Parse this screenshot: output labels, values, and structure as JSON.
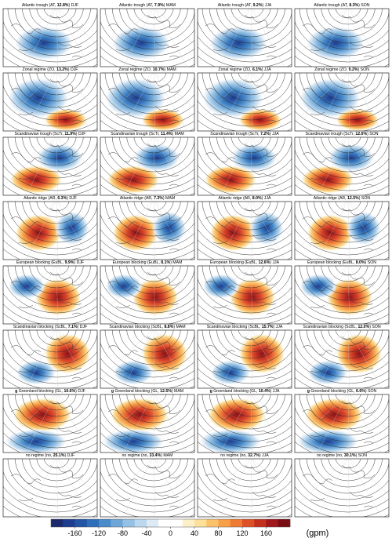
{
  "figure": {
    "rows": [
      {
        "panels": [
          {
            "pre": "Atlantic trough (AT, ",
            "bold": "12.8%",
            "post": ") DJF"
          },
          {
            "pre": "Atlantic trough (AT, ",
            "bold": "7.9%",
            "post": ") MAM"
          },
          {
            "pre": "Atlantic trough (AT, ",
            "bold": "9.2%",
            "post": ") JJA"
          },
          {
            "pre": "Atlantic trough (AT, ",
            "bold": "8.3%",
            "post": ") SON"
          }
        ]
      },
      {
        "panels": [
          {
            "pre": "Zonal regime (ZO, ",
            "bold": "13.2%",
            "post": ") DJF"
          },
          {
            "pre": "Zonal regime (ZO, ",
            "bold": "10.7%",
            "post": ") MAM"
          },
          {
            "pre": "Zonal regime (ZO, ",
            "bold": "6.1%",
            "post": ") JJA"
          },
          {
            "pre": "Zonal regime (ZO, ",
            "bold": "9.2%",
            "post": ") SON"
          }
        ]
      },
      {
        "panels": [
          {
            "pre": "Scandinavian trough (ScTr, ",
            "bold": "11.9%",
            "post": ") DJF"
          },
          {
            "pre": "Scandinavian trough (ScTr, ",
            "bold": "11.4%",
            "post": ") MAM"
          },
          {
            "pre": "Scandinavian trough (ScTr, ",
            "bold": "7.2%",
            "post": ") JJA"
          },
          {
            "pre": "Scandinavian trough (ScTr, ",
            "bold": "12.0%",
            "post": ") SON"
          }
        ]
      },
      {
        "panels": [
          {
            "pre": "Atlantic ridge (AR, ",
            "bold": "6.3%",
            "post": ") DJF"
          },
          {
            "pre": "Atlantic ridge (AR, ",
            "bold": "7.3%",
            "post": ") MAM"
          },
          {
            "pre": "Atlantic ridge (AR, ",
            "bold": "8.0%",
            "post": ") JJA"
          },
          {
            "pre": "Atlantic ridge (AR, ",
            "bold": "12.5%",
            "post": ") SON"
          }
        ]
      },
      {
        "panels": [
          {
            "pre": "European blocking (EuBL, ",
            "bold": "9.9%",
            "post": ") DJF"
          },
          {
            "pre": "European blocking (EuBL, ",
            "bold": "8.1%",
            "post": ") MAM"
          },
          {
            "pre": "European blocking (EuBL, ",
            "bold": "12.6%",
            "post": ") JJA"
          },
          {
            "pre": "European blocking (EuBL, ",
            "bold": "8.0%",
            "post": ") SON"
          }
        ]
      },
      {
        "panels": [
          {
            "pre": "Scandinavian blocking (ScBL, ",
            "bold": "7.1%",
            "post": ") DJF"
          },
          {
            "pre": "Scandinavian blocking (ScBL, ",
            "bold": "8.8%",
            "post": ") MAM"
          },
          {
            "pre": "Scandinavian blocking (ScBL, ",
            "bold": "15.7%",
            "post": ") JJA"
          },
          {
            "pre": "Scandinavian blocking (ScBL, ",
            "bold": "12.0%",
            "post": ") SON"
          }
        ]
      },
      {
        "panels": [
          {
            "tag": "g",
            "pre": " Greenland blocking (GL, ",
            "bold": "10.6%",
            "post": ") DJF"
          },
          {
            "tag": "g",
            "pre": " Greenland blocking (GL, ",
            "bold": "12.5%",
            "post": ") MAM"
          },
          {
            "tag": "g",
            "pre": " Greenland blocking (GL, ",
            "bold": "10.4%",
            "post": ") JJA"
          },
          {
            "tag": "g",
            "pre": " Greenland blocking (GL, ",
            "bold": "6.6%",
            "post": ") SON"
          }
        ]
      },
      {
        "panels": [
          {
            "pre": "no regime (no, ",
            "bold": "25.1%",
            "post": ") DJF"
          },
          {
            "pre": "no regime (no, ",
            "bold": "33.4%",
            "post": ") MAM"
          },
          {
            "pre": "no regime (no, ",
            "bold": "32.7%",
            "post": ") JJA"
          },
          {
            "pre": "no regime (no, ",
            "bold": "30.1%",
            "post": ") SON"
          }
        ]
      }
    ],
    "colorbar": {
      "clim": [
        -200,
        200
      ],
      "ticks": [
        -160,
        -120,
        -80,
        -40,
        0,
        40,
        80,
        120,
        160
      ],
      "unit": "(gpm)",
      "colors": [
        "#1a2a6c",
        "#1f3d8f",
        "#2255a5",
        "#2f6fba",
        "#4a8bc9",
        "#6ea6d8",
        "#94c1e5",
        "#bcd8ef",
        "#ddebf7",
        "#ffffff",
        "#ffffff",
        "#fdf0c8",
        "#fde09a",
        "#fbc26b",
        "#f7a047",
        "#ee7b33",
        "#de5127",
        "#c4301f",
        "#a0181c",
        "#7a0c14"
      ]
    }
  }
}
